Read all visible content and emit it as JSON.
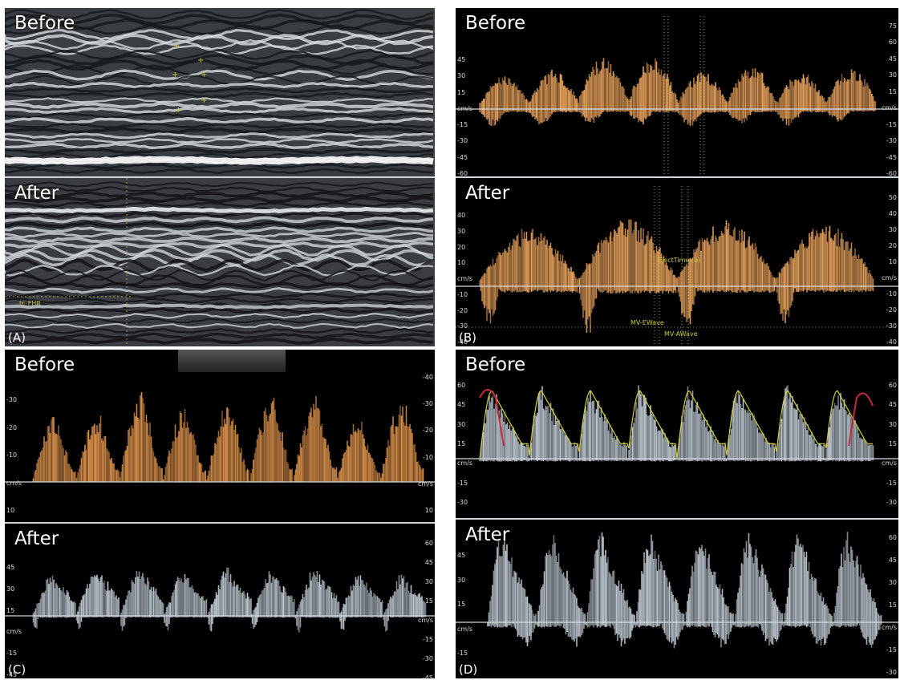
{
  "panels": {
    "A": {
      "label": "(A)",
      "before_title": "Before",
      "after_title": "After",
      "annotation": "tr. FHR"
    },
    "B": {
      "label": "(B)",
      "before_title": "Before",
      "after_title": "After",
      "before_ticks_left": [
        "45",
        "30",
        "15",
        "cm/s",
        "-15",
        "-30",
        "-45",
        "-60"
      ],
      "before_ticks_right": [
        "75",
        "60",
        "45",
        "30",
        "15",
        "cm/s",
        "-15",
        "-30",
        "-45",
        "-60"
      ],
      "after_ticks_left": [
        "40",
        "30",
        "20",
        "10",
        "cm/s",
        "-10",
        "-20",
        "-30",
        "-40"
      ],
      "after_ticks_right": [
        "50",
        "40",
        "30",
        "20",
        "10",
        "cm/s",
        "-10",
        "-20",
        "-30",
        "-40"
      ],
      "annotations": [
        "EjectTime (b)",
        "MV-EWave",
        "MV-AWave"
      ]
    },
    "C": {
      "label": "(C)",
      "before_title": "Before",
      "after_title": "After",
      "before_ticks_left": [
        "-30",
        "-20",
        "-10",
        "cm/s",
        "10"
      ],
      "before_ticks_right": [
        "-40",
        "-30",
        "-20",
        "-10",
        "cm/s",
        "10"
      ],
      "after_ticks_left": [
        "45",
        "30",
        "15",
        "cm/s",
        "-15",
        "-45"
      ],
      "after_ticks_right": [
        "60",
        "45",
        "30",
        "15",
        "cm/s",
        "-15",
        "-30",
        "-45"
      ]
    },
    "D": {
      "label": "(D)",
      "before_title": "Before",
      "after_title": "After",
      "before_ticks_left": [
        "60",
        "45",
        "30",
        "15",
        "cm/s",
        "-15",
        "-30"
      ],
      "before_ticks_right": [
        "60",
        "45",
        "30",
        "15",
        "cm/s",
        "-15",
        "-30"
      ],
      "after_ticks_left": [
        "45",
        "30",
        "15",
        "cm/s",
        "-15"
      ],
      "after_ticks_right": [
        "60",
        "45",
        "30",
        "15",
        "cm/s",
        "-15",
        "-30"
      ]
    }
  },
  "colors": {
    "orange_doppler": "#f0a860",
    "gray_doppler": "#c8d4dc",
    "annotation": "#c9c83a",
    "trace_red": "#c8283a",
    "trace_yellow": "#d8d038"
  }
}
